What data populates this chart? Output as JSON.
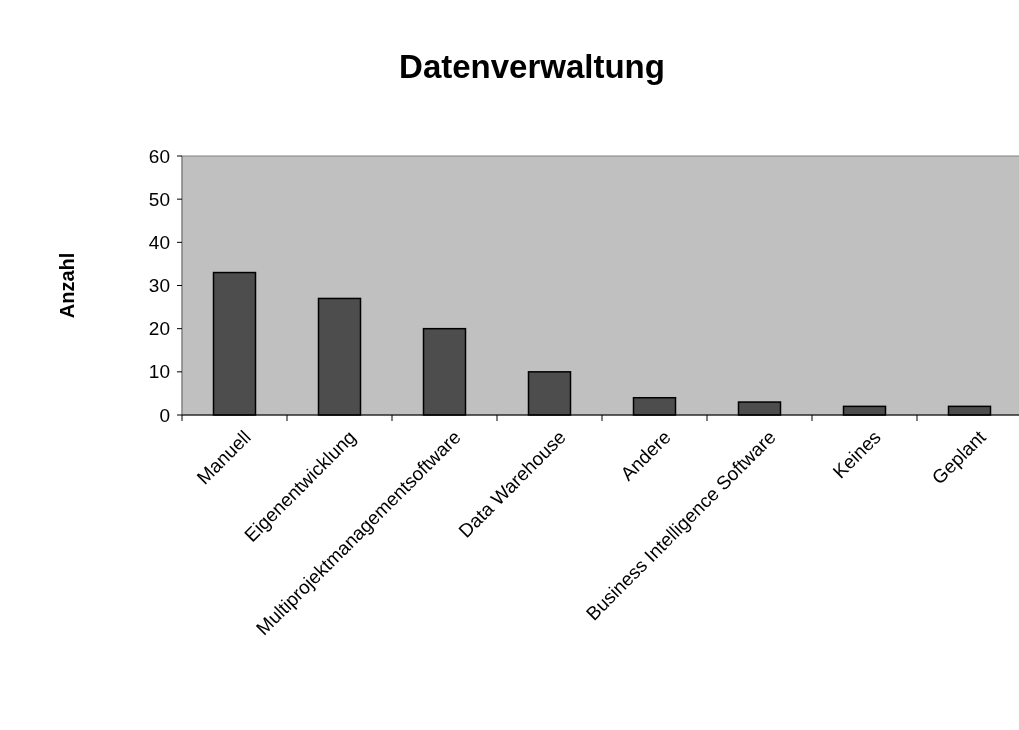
{
  "chart_data": {
    "type": "bar",
    "title": "Datenverwaltung",
    "ylabel": "Anzahl",
    "categories": [
      "Manuell",
      "Eigenentwicklung",
      "Multiprojektmanagementsoftware",
      "Data Warehouse",
      "Andere",
      "Business Intelligence Software",
      "Keines",
      "Geplant"
    ],
    "values": [
      33,
      27,
      20,
      10,
      4,
      3,
      2,
      2
    ],
    "color": "#4d4d4d",
    "ylim": [
      0,
      60
    ],
    "yticks": [
      0,
      10,
      20,
      30,
      40,
      50,
      60
    ],
    "grid": false
  }
}
